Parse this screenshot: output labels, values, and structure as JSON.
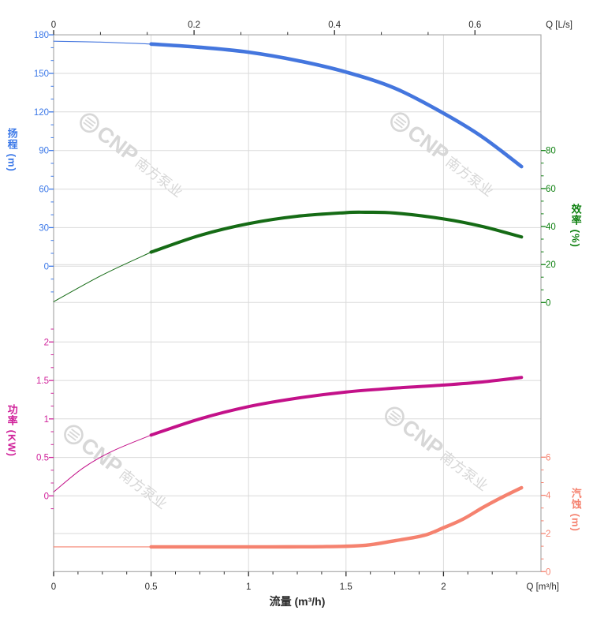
{
  "colors": {
    "head": "#4476DE",
    "head_label": "#3B78E8",
    "efficiency": "#156B15",
    "efficiency_label": "#0E8010",
    "power": "#C31189",
    "power_label": "#D0219A",
    "npsh": "#F5826F",
    "npsh_label": "#F5826F",
    "grid": "#DADADA",
    "frame": "#ABABAB",
    "axis_text": "#2B2B2B",
    "watermark": "#D7D7D7",
    "background": "#FFFFFF"
  },
  "axis_titles": {
    "head": "扬程 (m)",
    "efficiency": "效率 (%)",
    "power": "功率 (KW)",
    "npsh": "汽蚀 (m)",
    "flow": "流量 (m³/h)"
  },
  "watermark": {
    "logo": "wave-circle-icon",
    "brand": "CNP",
    "company": "南方泵业"
  },
  "chart_data": {
    "type": "line",
    "title": "",
    "grid": true,
    "legend": false,
    "x_axis_bottom": {
      "label": "流量 (m³/h)",
      "unit_label": "Q [m³/h]",
      "range": [
        0,
        2.5
      ],
      "major_ticks": [
        0,
        0.5,
        1,
        1.5,
        2
      ],
      "major_labels": [
        "0",
        "0.5",
        "1",
        "1.5",
        "2"
      ],
      "minor_step": 0.125,
      "minor_range": [
        0,
        2.375
      ]
    },
    "x_axis_top": {
      "label": "Q [L/s]",
      "unit_label": "Q [L/s]",
      "range": [
        0,
        0.695
      ],
      "major_ticks": [
        0,
        0.2,
        0.4,
        0.6
      ],
      "major_labels": [
        "0",
        "0.2",
        "0.4",
        "0.6"
      ],
      "minor_step": 0.0666667,
      "minor_range": [
        0,
        0.6666667
      ]
    },
    "y_axes": [
      {
        "id": "head",
        "title": "扬程 (m)",
        "side": "left",
        "range": [
          0,
          180
        ],
        "major_ticks": [
          180,
          150,
          120,
          90,
          60,
          30,
          0
        ],
        "major_labels": [
          "180",
          "150",
          "120",
          "90",
          "60",
          "30",
          "0"
        ],
        "minor_step": 10,
        "minor_range": [
          -20,
          180
        ]
      },
      {
        "id": "efficiency",
        "title": "效率 (%)",
        "side": "right",
        "range": [
          0,
          80
        ],
        "major_ticks": [
          80,
          60,
          40,
          20,
          0
        ],
        "major_labels": [
          "80",
          "60",
          "40",
          "20",
          "0"
        ],
        "minor_step": 6.6667,
        "minor_range": [
          0,
          80
        ]
      },
      {
        "id": "power",
        "title": "功率 (KW)",
        "side": "left",
        "range": [
          0,
          2
        ],
        "major_ticks": [
          2,
          1.5,
          1,
          0.5,
          0
        ],
        "major_labels": [
          "2",
          "1.5",
          "1",
          "0.5",
          "0"
        ],
        "minor_step": 0.16667,
        "minor_range": [
          -0.16667,
          2.33333
        ]
      },
      {
        "id": "npsh",
        "title": "汽蚀 (m)",
        "side": "right",
        "range": [
          0,
          6
        ],
        "major_ticks": [
          6,
          4,
          2,
          0
        ],
        "major_labels": [
          "6",
          "4",
          "2",
          "0"
        ],
        "minor_step": 0.66667,
        "minor_range": [
          0,
          6.66667
        ]
      }
    ],
    "series": [
      {
        "id": "head",
        "name": "扬程",
        "axis": "head",
        "color": "#4476DE",
        "thick_width": 4.6,
        "thin_width": 1.1,
        "thin_until": 0.5,
        "points": [
          [
            0,
            175
          ],
          [
            0.25,
            174.3
          ],
          [
            0.5,
            172.8
          ],
          [
            0.75,
            170.3
          ],
          [
            1.0,
            166.5
          ],
          [
            1.25,
            160
          ],
          [
            1.5,
            151
          ],
          [
            1.75,
            138.5
          ],
          [
            2.0,
            119
          ],
          [
            2.2,
            100.5
          ],
          [
            2.4,
            77.5
          ]
        ]
      },
      {
        "id": "efficiency",
        "name": "效率",
        "axis": "efficiency",
        "color": "#156B15",
        "thick_width": 4.1,
        "thin_width": 1.0,
        "thin_until": 0.5,
        "points": [
          [
            0,
            0.4
          ],
          [
            0.25,
            14.5
          ],
          [
            0.5,
            26.5
          ],
          [
            0.75,
            35.3
          ],
          [
            1.0,
            41.5
          ],
          [
            1.25,
            45.4
          ],
          [
            1.5,
            47.3
          ],
          [
            1.6,
            47.5
          ],
          [
            1.75,
            47.1
          ],
          [
            2.0,
            44
          ],
          [
            2.2,
            40
          ],
          [
            2.4,
            34.5
          ]
        ]
      },
      {
        "id": "power",
        "name": "功率",
        "axis": "power",
        "color": "#C31189",
        "thick_width": 4.0,
        "thin_width": 1.0,
        "thin_until": 0.5,
        "points": [
          [
            0,
            0.05
          ],
          [
            0.15,
            0.36
          ],
          [
            0.3,
            0.58
          ],
          [
            0.5,
            0.79
          ],
          [
            0.75,
            1.0
          ],
          [
            1.0,
            1.16
          ],
          [
            1.25,
            1.27
          ],
          [
            1.5,
            1.35
          ],
          [
            1.75,
            1.4
          ],
          [
            2.0,
            1.44
          ],
          [
            2.2,
            1.48
          ],
          [
            2.4,
            1.54
          ]
        ]
      },
      {
        "id": "npsh",
        "name": "汽蚀",
        "axis": "npsh",
        "color": "#F5826F",
        "thick_width": 4.4,
        "thin_width": 1.1,
        "thin_until": 0.5,
        "points": [
          [
            0,
            1.3
          ],
          [
            0.25,
            1.3
          ],
          [
            0.5,
            1.3
          ],
          [
            0.8,
            1.3
          ],
          [
            1.1,
            1.3
          ],
          [
            1.4,
            1.31
          ],
          [
            1.6,
            1.38
          ],
          [
            1.75,
            1.62
          ],
          [
            1.9,
            1.9
          ],
          [
            2.0,
            2.3
          ],
          [
            2.1,
            2.75
          ],
          [
            2.2,
            3.35
          ],
          [
            2.3,
            3.9
          ],
          [
            2.4,
            4.4
          ]
        ]
      }
    ]
  }
}
